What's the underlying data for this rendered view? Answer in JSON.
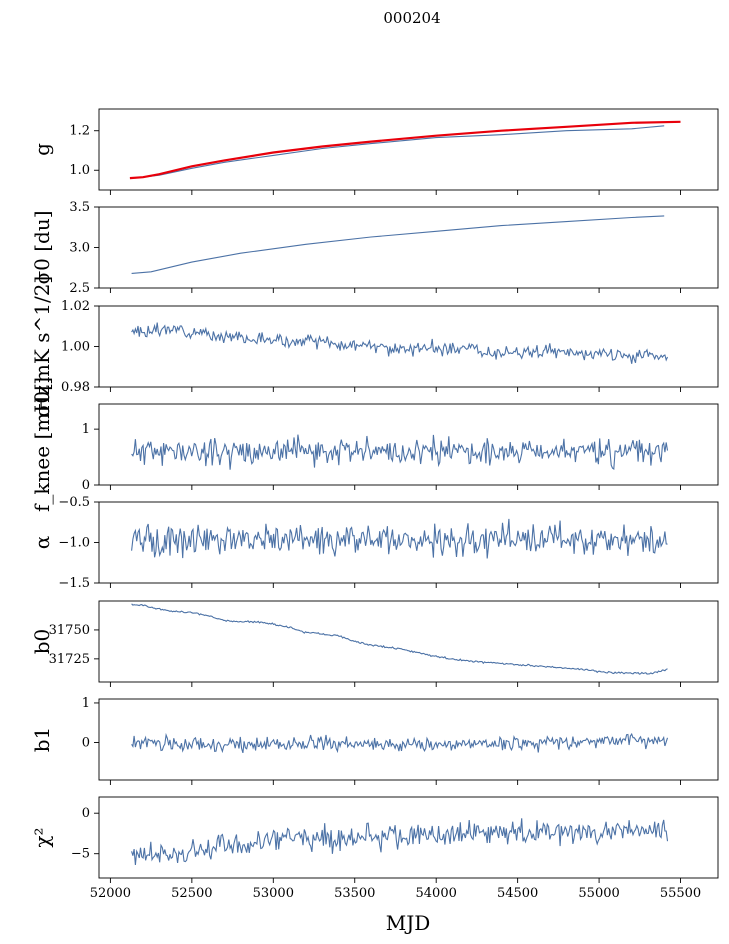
{
  "figure": {
    "title": "000204",
    "xlabel": "MJD",
    "x_ticks": [
      52000,
      52500,
      53000,
      53500,
      54000,
      54500,
      55000,
      55500
    ],
    "x_range": [
      51930,
      55730
    ],
    "data_x_range": [
      52120,
      55420
    ]
  },
  "colors": {
    "series": "#4c72a6",
    "model": "#e8000b",
    "axes": "#000000"
  },
  "chart_data": [
    {
      "type": "line",
      "id": "gain",
      "ylabel": "g",
      "ylim": [
        0.9,
        1.31
      ],
      "yticks": [
        1.0,
        1.2
      ],
      "ytick_labels": [
        "1.0",
        "1.2"
      ],
      "series": [
        {
          "x": [
            52150,
            52300,
            52500,
            52700,
            53000,
            53300,
            53600,
            54000,
            54400,
            54800,
            55200,
            55400
          ],
          "values": [
            0.96,
            0.975,
            1.01,
            1.04,
            1.075,
            1.11,
            1.135,
            1.165,
            1.18,
            1.2,
            1.21,
            1.225
          ]
        },
        {
          "name": "",
          "x": [
            52120,
            52200,
            52300,
            52500,
            52700,
            53000,
            53300,
            53600,
            54000,
            54400,
            54800,
            55200,
            55500
          ],
          "values": [
            0.96,
            0.965,
            0.98,
            1.02,
            1.05,
            1.09,
            1.12,
            1.145,
            1.175,
            1.2,
            1.22,
            1.24,
            1.245
          ]
        }
      ]
    },
    {
      "type": "line",
      "id": "sigma0_du",
      "ylabel": "σ0 [du]",
      "ylim": [
        2.5,
        3.5
      ],
      "yticks": [
        2.5,
        3.0,
        3.5
      ],
      "ytick_labels": [
        "2.5",
        "3.0",
        "3.5"
      ],
      "series": [
        {
          "x": [
            52130,
            52250,
            52500,
            52800,
            53200,
            53600,
            54000,
            54400,
            54800,
            55200,
            55400
          ],
          "values": [
            2.68,
            2.7,
            2.82,
            2.93,
            3.04,
            3.13,
            3.2,
            3.27,
            3.32,
            3.37,
            3.39
          ]
        }
      ]
    },
    {
      "type": "line",
      "id": "sigma0_mk",
      "ylabel": "σ0[mK s^1/2]",
      "ylim": [
        0.98,
        1.02
      ],
      "yticks": [
        0.98,
        1.0,
        1.02
      ],
      "ytick_labels": [
        "0.98",
        "1.00",
        "1.02"
      ],
      "series": [
        {
          "x_range": [
            52130,
            55420
          ],
          "values": [
            1.007,
            1.0075,
            1.0085,
            1.008,
            1.005,
            1.006,
            1.003,
            1.004,
            1.002,
            1.003,
            1.001,
            1.0,
            1.0015,
            0.999,
            0.998,
            1.0,
            0.998,
            0.9995,
            0.997,
            0.998,
            0.997,
            0.9975,
            0.997,
            0.996,
            0.9965,
            0.995,
            0.996,
            0.995
          ],
          "noise": 0.0015,
          "seed": 3
        }
      ]
    },
    {
      "type": "line",
      "id": "fknee",
      "ylabel": "f_knee [mHz]",
      "ylim": [
        0,
        1.45
      ],
      "yticks": [
        0,
        1
      ],
      "ytick_labels": [
        "0",
        "1"
      ],
      "series": [
        {
          "x_range": [
            52130,
            55420
          ],
          "values": [
            0.6,
            0.6,
            0.6,
            0.6,
            0.6,
            0.6
          ],
          "noise": 0.12,
          "seed": 11
        }
      ]
    },
    {
      "type": "line",
      "id": "alpha",
      "ylabel": "α",
      "ylim": [
        -1.5,
        -0.5
      ],
      "yticks": [
        -1.5,
        -1.0,
        -0.5
      ],
      "ytick_labels": [
        "−1.5",
        "−1.0",
        "−0.5"
      ],
      "series": [
        {
          "x_range": [
            52130,
            55420
          ],
          "values": [
            -0.97,
            -0.97,
            -0.97,
            -0.97,
            -0.97
          ],
          "noise": 0.09,
          "seed": 21
        }
      ]
    },
    {
      "type": "line",
      "id": "b0",
      "ylabel": "b0",
      "ylim": [
        31705,
        31775
      ],
      "yticks": [
        31725,
        31750
      ],
      "ytick_labels": [
        "31725",
        "31750"
      ],
      "series": [
        {
          "x": [
            52130,
            52200,
            52300,
            52400,
            52500,
            52600,
            52700,
            52800,
            52900,
            53000,
            53100,
            53200,
            53400,
            53500,
            53600,
            53700,
            53800,
            54000,
            54200,
            54400,
            54500,
            54700,
            54900,
            55000,
            55100,
            55200,
            55300,
            55420
          ],
          "values": [
            31772,
            31771,
            31768,
            31766,
            31765,
            31762,
            31758,
            31757,
            31757,
            31755,
            31752,
            31748,
            31745,
            31740,
            31737,
            31735,
            31733,
            31727,
            31723,
            31721,
            31720,
            31718,
            31716,
            31714,
            31713,
            31713,
            31712,
            31716
          ],
          "noise": 0.4,
          "seed": 5
        }
      ]
    },
    {
      "type": "line",
      "id": "b1",
      "ylabel": "b1",
      "ylim": [
        -0.95,
        1.1
      ],
      "yticks": [
        0,
        1
      ],
      "ytick_labels": [
        "0",
        "1"
      ],
      "series": [
        {
          "x_range": [
            52130,
            55420
          ],
          "values": [
            0.0,
            -0.05,
            -0.05,
            -0.05,
            -0.05,
            -0.05,
            -0.02,
            0.0,
            0.05,
            0.05
          ],
          "noise": 0.09,
          "seed": 31
        }
      ]
    },
    {
      "type": "line",
      "id": "chi2",
      "ylabel": "χ²",
      "ylim": [
        -8,
        2
      ],
      "yticks": [
        -5,
        0
      ],
      "ytick_labels": [
        "−5",
        "0"
      ],
      "series": [
        {
          "x_range": [
            52130,
            55420
          ],
          "values": [
            -5,
            -5.3,
            -4.4,
            -3.6,
            -3.3,
            -3.0,
            -2.9,
            -2.7,
            -2.6,
            -2.5,
            -2.4,
            -2.3,
            -2.2,
            -2.0
          ],
          "noise": 0.75,
          "seed": 41
        }
      ]
    }
  ]
}
